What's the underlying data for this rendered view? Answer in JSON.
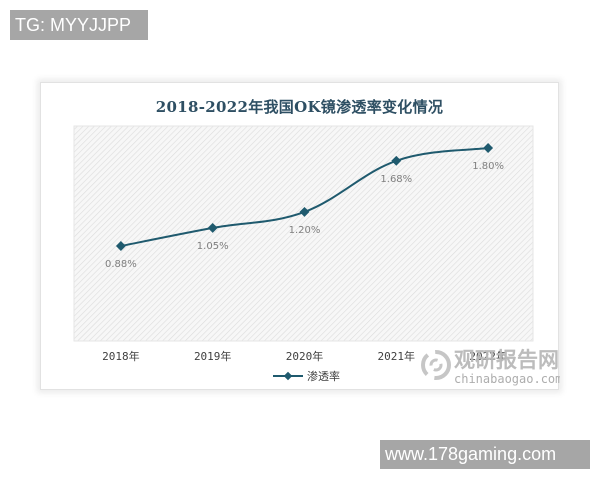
{
  "overlay": {
    "top_tag": "TG: MYYJJPP",
    "bottom_tag": "www.178gaming.com"
  },
  "watermark": {
    "name_cn": "观研报告网",
    "domain": "chinabaogao.com",
    "icon": "swirl-logo-icon"
  },
  "colors": {
    "line": "#1f5a6e",
    "title": "#2e4f63",
    "data_label": "#7f7f7f",
    "axis_label": "#404040",
    "hatch": "#dcdcdc"
  },
  "chart_data": {
    "type": "line",
    "title": "2018-2022年我国OK镜渗透率变化情况",
    "categories": [
      "2018年",
      "2019年",
      "2020年",
      "2021年",
      "2022年"
    ],
    "series": [
      {
        "name": "渗透率",
        "values": [
          0.88,
          1.05,
          1.2,
          1.68,
          1.8
        ],
        "labels": [
          "0.88%",
          "1.05%",
          "1.20%",
          "1.68%",
          "1.80%"
        ]
      }
    ],
    "xlabel": "",
    "ylabel": "",
    "y_axis_visible": false,
    "grid": false,
    "smooth": true,
    "marker": "diamond",
    "legend_position": "bottom",
    "plot_background": "diagonal-hatch"
  }
}
